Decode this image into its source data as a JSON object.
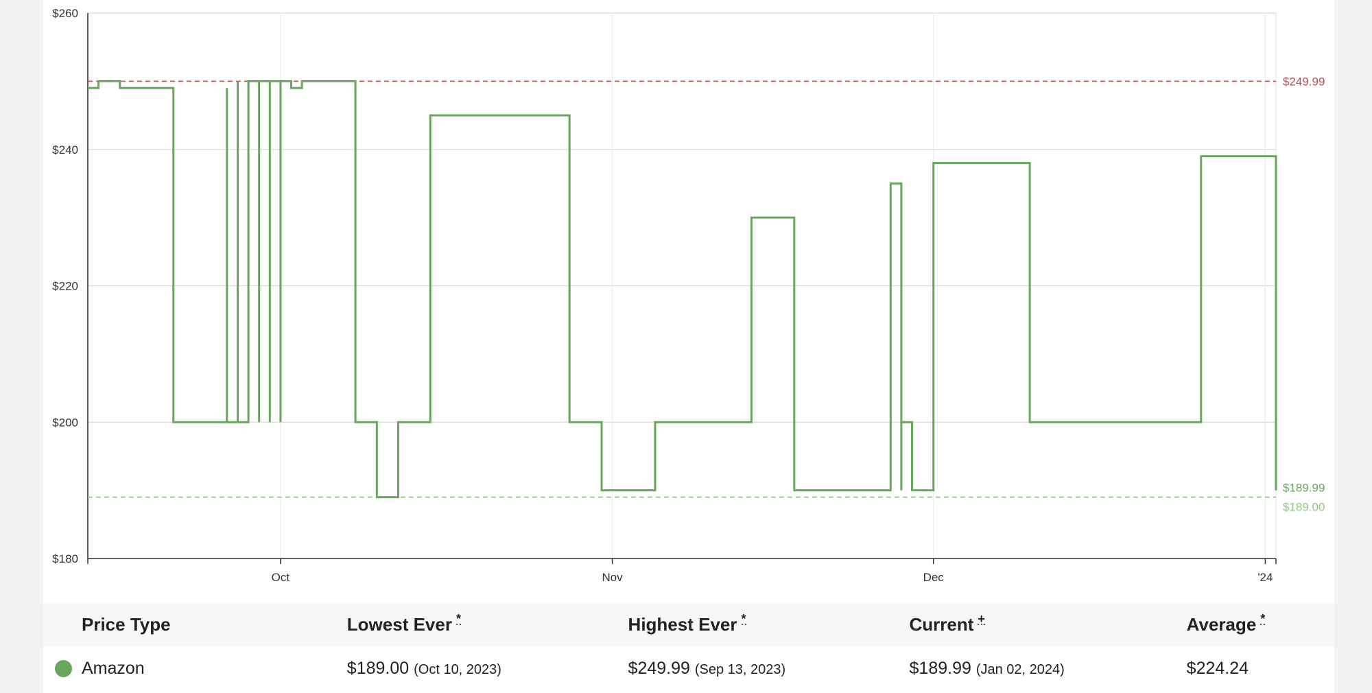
{
  "chart_data": {
    "type": "line",
    "y_ticks": [
      "$260",
      "$240",
      "$220",
      "$200",
      "$180"
    ],
    "ylim": [
      180,
      260
    ],
    "x_ticks": [
      {
        "label": "Oct",
        "date": "2023-10-01"
      },
      {
        "label": "Nov",
        "date": "2023-11-01"
      },
      {
        "label": "Dec",
        "date": "2023-12-01"
      },
      {
        "label": "'24",
        "date": "2024-01-01"
      }
    ],
    "xlim": [
      "2023-09-13",
      "2024-01-02"
    ],
    "grid": true,
    "series": [
      {
        "color": "#69a65d",
        "step": true,
        "points": [
          [
            "2023-09-13",
            249
          ],
          [
            "2023-09-14",
            250
          ],
          [
            "2023-09-16",
            249
          ],
          [
            "2023-09-21",
            200
          ],
          [
            "2023-09-26",
            249
          ],
          [
            "2023-09-26",
            200
          ],
          [
            "2023-09-27",
            250
          ],
          [
            "2023-09-27",
            200
          ],
          [
            "2023-09-28",
            250
          ],
          [
            "2023-09-29",
            200
          ],
          [
            "2023-09-29",
            250
          ],
          [
            "2023-09-30",
            200
          ],
          [
            "2023-09-30",
            250
          ],
          [
            "2023-10-01",
            200
          ],
          [
            "2023-10-01",
            250
          ],
          [
            "2023-10-02",
            249
          ],
          [
            "2023-10-03",
            250
          ],
          [
            "2023-10-08",
            200
          ],
          [
            "2023-10-10",
            189
          ],
          [
            "2023-10-12",
            200
          ],
          [
            "2023-10-15",
            245
          ],
          [
            "2023-10-28",
            200
          ],
          [
            "2023-10-31",
            190
          ],
          [
            "2023-11-05",
            200
          ],
          [
            "2023-11-14",
            230
          ],
          [
            "2023-11-18",
            190
          ],
          [
            "2023-11-27",
            235
          ],
          [
            "2023-11-28",
            190
          ],
          [
            "2023-11-28",
            200
          ],
          [
            "2023-11-29",
            190
          ],
          [
            "2023-12-01",
            235
          ],
          [
            "2023-12-01",
            238
          ],
          [
            "2023-12-10",
            200
          ],
          [
            "2023-12-26",
            239
          ],
          [
            "2024-01-02",
            190
          ]
        ]
      }
    ],
    "reference_lines": [
      {
        "label": "$249.99",
        "value": 249.99,
        "color": "#c0504d"
      },
      {
        "label": "$189.99",
        "value": 189.99,
        "color": "#69a65d"
      },
      {
        "label": "$189.00",
        "value": 189.0,
        "color": "#8cc97f"
      }
    ]
  },
  "table": {
    "headers": {
      "price_type": "Price Type",
      "lowest": "Lowest Ever",
      "lowest_mark": "*",
      "highest": "Highest Ever",
      "highest_mark": "*",
      "current": "Current",
      "current_mark": "+",
      "average": "Average",
      "average_mark": "*"
    },
    "rows": [
      {
        "price_type": "Amazon",
        "dot_color": "#69a65d",
        "lowest": "$189.00",
        "lowest_date": "(Oct 10, 2023)",
        "highest": "$249.99",
        "highest_date": "(Sep 13, 2023)",
        "current": "$189.99",
        "current_date": "(Jan 02, 2024)",
        "average": "$224.24"
      }
    ]
  }
}
